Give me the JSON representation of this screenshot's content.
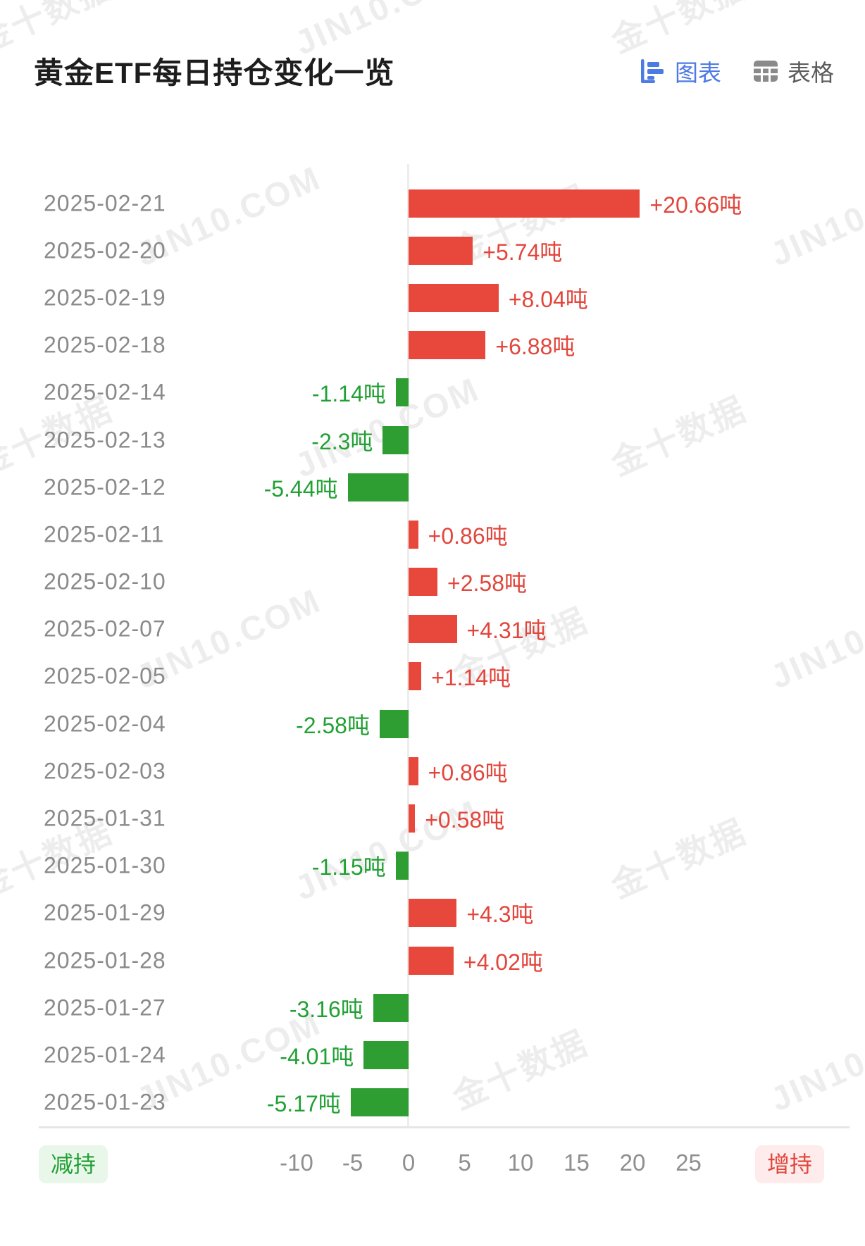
{
  "title": "黄金ETF每日持仓变化一览",
  "view_toggle": {
    "chart_label": "图表",
    "table_label": "表格",
    "active": "图表"
  },
  "legend": {
    "decrease": "减持",
    "increase": "增持"
  },
  "watermarks": {
    "primary": "JIN10.COM",
    "secondary": "金十数据"
  },
  "colors": {
    "increase_bar": "#e8483b",
    "increase_text": "#e2463c",
    "decrease_bar": "#2e9e33",
    "decrease_text": "#21a034",
    "accent_blue": "#4d7be4",
    "date_text": "#8a8a8a",
    "axis_text": "#8f8f8f"
  },
  "chart_data": {
    "type": "bar",
    "orientation": "horizontal",
    "unit": "吨",
    "categories": [
      "2025-02-21",
      "2025-02-20",
      "2025-02-19",
      "2025-02-18",
      "2025-02-14",
      "2025-02-13",
      "2025-02-12",
      "2025-02-11",
      "2025-02-10",
      "2025-02-07",
      "2025-02-05",
      "2025-02-04",
      "2025-02-03",
      "2025-01-31",
      "2025-01-30",
      "2025-01-29",
      "2025-01-28",
      "2025-01-27",
      "2025-01-24",
      "2025-01-23"
    ],
    "values": [
      20.66,
      5.74,
      8.04,
      6.88,
      -1.14,
      -2.3,
      -5.44,
      0.86,
      2.58,
      4.31,
      1.14,
      -2.58,
      0.86,
      0.58,
      -1.15,
      4.3,
      4.02,
      -3.16,
      -4.01,
      -5.17
    ],
    "labels": [
      "+20.66吨",
      "+5.74吨",
      "+8.04吨",
      "+6.88吨",
      "-1.14吨",
      "-2.3吨",
      "-5.44吨",
      "+0.86吨",
      "+2.58吨",
      "+4.31吨",
      "+1.14吨",
      "-2.58吨",
      "+0.86吨",
      "+0.58吨",
      "-1.15吨",
      "+4.3吨",
      "+4.02吨",
      "-3.16吨",
      "-4.01吨",
      "-5.17吨"
    ],
    "xticks": [
      -10,
      -5,
      0,
      5,
      10,
      15,
      20,
      25
    ],
    "xtick_labels": [
      "-10",
      "-5",
      "0",
      "5",
      "10",
      "15",
      "20",
      "25"
    ],
    "xlim": [
      -10,
      25
    ],
    "grid": false,
    "positive_meaning": "增持",
    "negative_meaning": "减持"
  }
}
